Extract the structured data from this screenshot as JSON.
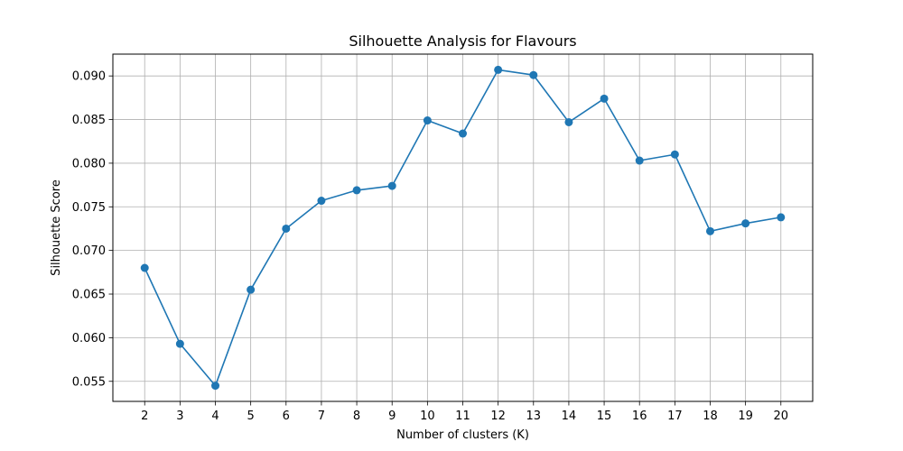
{
  "chart_data": {
    "type": "line",
    "title": "Silhouette Analysis for Flavours",
    "xlabel": "Number of clusters (K)",
    "ylabel": "Silhouette Score",
    "x": [
      2,
      3,
      4,
      5,
      6,
      7,
      8,
      9,
      10,
      11,
      12,
      13,
      14,
      15,
      16,
      17,
      18,
      19,
      20
    ],
    "series": [
      {
        "values": [
          0.068,
          0.0593,
          0.0545,
          0.0655,
          0.0725,
          0.0757,
          0.0769,
          0.0774,
          0.0849,
          0.0834,
          0.0907,
          0.0901,
          0.0847,
          0.0874,
          0.0803,
          0.081,
          0.0722,
          0.0731,
          0.0738
        ],
        "color": "#1f77b4",
        "marker": "circle"
      }
    ],
    "xticks": [
      "2",
      "3",
      "4",
      "5",
      "6",
      "7",
      "8",
      "9",
      "10",
      "11",
      "12",
      "13",
      "14",
      "15",
      "16",
      "17",
      "18",
      "19",
      "20"
    ],
    "yticks": [
      "0.055",
      "0.060",
      "0.065",
      "0.070",
      "0.075",
      "0.080",
      "0.085",
      "0.090"
    ],
    "xlim": [
      1.1,
      20.9
    ],
    "ylim": [
      0.0527,
      0.0925
    ],
    "grid": true
  }
}
